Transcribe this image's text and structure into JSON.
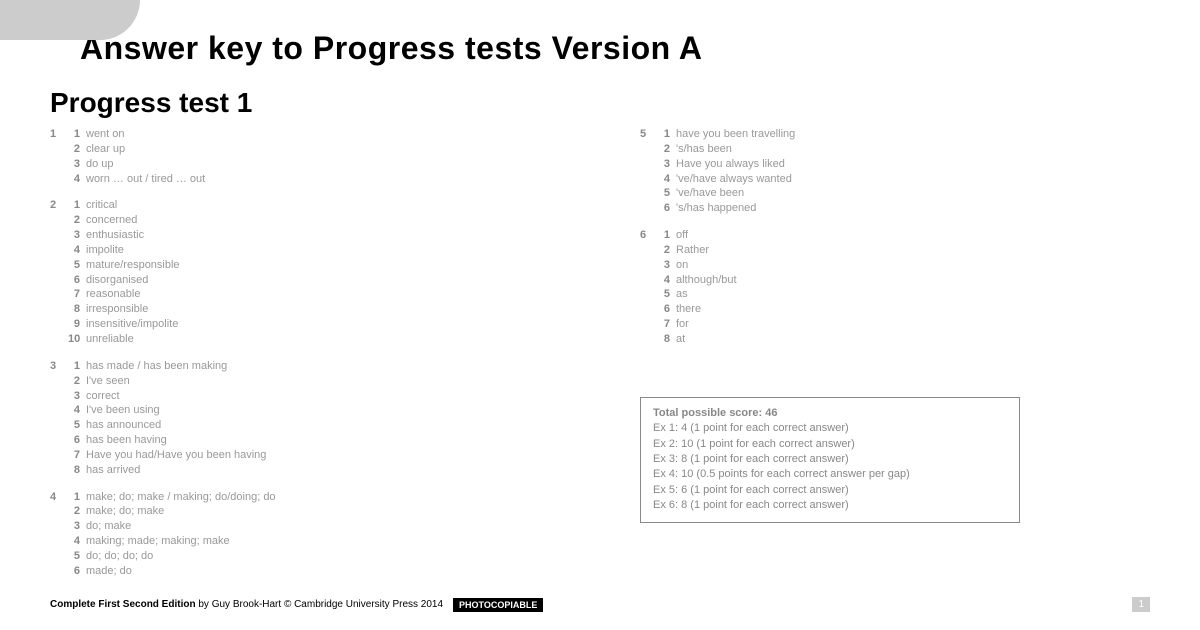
{
  "mainTitle": "Answer key to Progress tests Version A",
  "subTitle": "Progress test 1",
  "leftExercises": [
    {
      "num": "1",
      "answers": [
        {
          "n": "1",
          "t": "went on"
        },
        {
          "n": "2",
          "t": "clear up"
        },
        {
          "n": "3",
          "t": "do up"
        },
        {
          "n": "4",
          "t": "worn … out / tired … out"
        }
      ]
    },
    {
      "num": "2",
      "answers": [
        {
          "n": "1",
          "t": "critical"
        },
        {
          "n": "2",
          "t": "concerned"
        },
        {
          "n": "3",
          "t": "enthusiastic"
        },
        {
          "n": "4",
          "t": "impolite"
        },
        {
          "n": "5",
          "t": "mature/responsible"
        },
        {
          "n": "6",
          "t": "disorganised"
        },
        {
          "n": "7",
          "t": "reasonable"
        },
        {
          "n": "8",
          "t": "irresponsible"
        },
        {
          "n": "9",
          "t": "insensitive/impolite"
        },
        {
          "n": "10",
          "t": "unreliable"
        }
      ]
    },
    {
      "num": "3",
      "answers": [
        {
          "n": "1",
          "t": "has made / has been making"
        },
        {
          "n": "2",
          "t": "I've seen"
        },
        {
          "n": "3",
          "t": "correct"
        },
        {
          "n": "4",
          "t": "I've been using"
        },
        {
          "n": "5",
          "t": "has announced"
        },
        {
          "n": "6",
          "t": "has been having"
        },
        {
          "n": "7",
          "t": "Have you had/Have you been having"
        },
        {
          "n": "8",
          "t": "has arrived"
        }
      ]
    },
    {
      "num": "4",
      "answers": [
        {
          "n": "1",
          "t": "make; do; make / making; do/doing; do"
        },
        {
          "n": "2",
          "t": "make; do; make"
        },
        {
          "n": "3",
          "t": "do; make"
        },
        {
          "n": "4",
          "t": "making; made; making; make"
        },
        {
          "n": "5",
          "t": "do; do; do; do"
        },
        {
          "n": "6",
          "t": "made; do"
        }
      ]
    }
  ],
  "rightExercises": [
    {
      "num": "5",
      "answers": [
        {
          "n": "1",
          "t": "have you been travelling"
        },
        {
          "n": "2",
          "t": "'s/has been"
        },
        {
          "n": "3",
          "t": "Have you always liked"
        },
        {
          "n": "4",
          "t": "'ve/have always wanted"
        },
        {
          "n": "5",
          "t": "'ve/have been"
        },
        {
          "n": "6",
          "t": "'s/has happened"
        }
      ]
    },
    {
      "num": "6",
      "answers": [
        {
          "n": "1",
          "t": "off"
        },
        {
          "n": "2",
          "t": "Rather"
        },
        {
          "n": "3",
          "t": "on"
        },
        {
          "n": "4",
          "t": "although/but"
        },
        {
          "n": "5",
          "t": "as"
        },
        {
          "n": "6",
          "t": "there"
        },
        {
          "n": "7",
          "t": "for"
        },
        {
          "n": "8",
          "t": "at"
        }
      ]
    }
  ],
  "scoreTitle": "Total possible score: 46",
  "scoreLines": [
    "Ex 1: 4 (1 point for each correct answer)",
    "Ex 2: 10 (1 point for each correct answer)",
    "Ex 3: 8 (1 point for each correct answer)",
    "Ex 4: 10 (0.5 points for each correct answer per gap)",
    "Ex 5: 6 (1 point for each correct answer)",
    "Ex 6: 8 (1 point for each correct answer)"
  ],
  "footerBold": "Complete First Second Edition",
  "footerRest": " by Guy Brook-Hart © Cambridge University Press 2014",
  "photocopiable": "PHOTOCOPIABLE",
  "pageNum": "1"
}
